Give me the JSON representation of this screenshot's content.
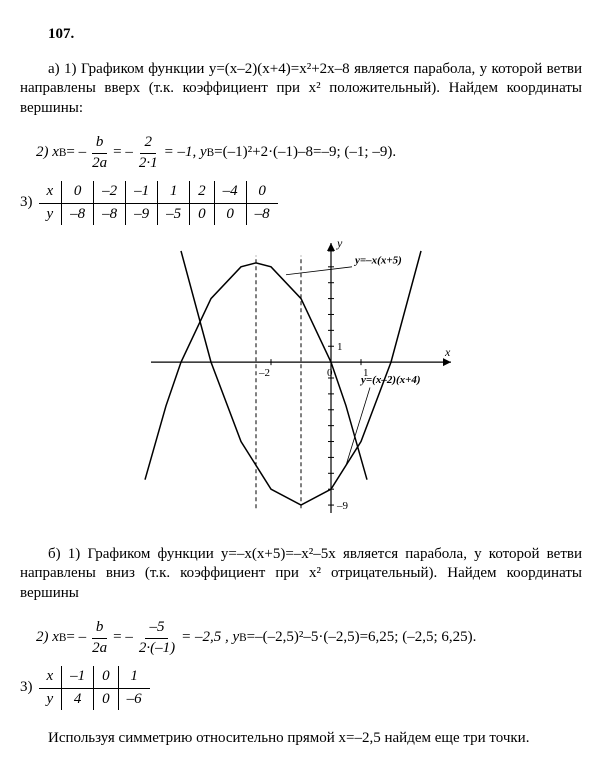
{
  "problem_number": "107.",
  "partA": {
    "item1": "а) 1) Графиком функции y=(x–2)(x+4)=x²+2x–8 является парабола, у которой ветви направлены вверх (т.к. коэффициент при x² положительный). Найдем координаты вершины:",
    "item2_lead": "2) x",
    "item2_sub": "В",
    "item2_eq1": "= –",
    "frac1_num": "b",
    "frac1_den": "2a",
    "item2_eq2": " = –",
    "frac2_num": "2",
    "frac2_den": "2·1",
    "item2_tail": " = –1, y",
    "item2_sub2": "В",
    "item2_tail2": "=(–1)²+2·(–1)–8=–9; (–1; –9).",
    "item3_label": "3)",
    "table": {
      "head": [
        "x",
        "0",
        "–2",
        "–1",
        "1",
        "2",
        "–4",
        "0"
      ],
      "row": [
        "y",
        "–8",
        "–8",
        "–9",
        "–5",
        "0",
        "0",
        "–8"
      ]
    }
  },
  "chart": {
    "type": "line",
    "background_color": "#ffffff",
    "axis_color": "#000000",
    "tick_fontsize": 11,
    "label_fontsize": 12,
    "xlim": [
      -6,
      4
    ],
    "ylim": [
      -9.5,
      7.5
    ],
    "x_ticks": [
      -2,
      0,
      1
    ],
    "x_labels": [
      "–2",
      "0",
      "1"
    ],
    "y_ticks": [
      1,
      -9
    ],
    "y_labels": [
      "1",
      "–9"
    ],
    "axis_labels": {
      "x": "x",
      "y": "y"
    },
    "curve_labels": {
      "down": "y=–x(x+5)",
      "up": "y=(x–2)(x+4)"
    },
    "series": {
      "parabola_up": {
        "stroke": "#000000",
        "stroke_width": 1.5,
        "points": [
          [
            -5,
            7
          ],
          [
            -4,
            0
          ],
          [
            -3,
            -5
          ],
          [
            -2,
            -8
          ],
          [
            -1,
            -9
          ],
          [
            0,
            -8
          ],
          [
            1,
            -5
          ],
          [
            2,
            0
          ],
          [
            3,
            7
          ]
        ]
      },
      "parabola_down": {
        "stroke": "#000000",
        "stroke_width": 1.5,
        "points": [
          [
            -6.2,
            -7.4
          ],
          [
            -5.5,
            -2.75
          ],
          [
            -5,
            0
          ],
          [
            -4,
            4
          ],
          [
            -3,
            6
          ],
          [
            -2.5,
            6.25
          ],
          [
            -2,
            6
          ],
          [
            -1,
            4
          ],
          [
            0,
            0
          ],
          [
            0.5,
            -2.75
          ],
          [
            1.2,
            -7.4
          ]
        ]
      }
    },
    "vlines": [
      {
        "x": -2.5,
        "dash": "4 3",
        "stroke": "#000000"
      },
      {
        "x": -1,
        "dash": "4 3",
        "stroke": "#000000"
      }
    ]
  },
  "partB": {
    "item1": "б) 1) Графиком функции y=–x(x+5)=–x²–5x является парабола, у которой ветви направлены вниз (т.к. коэффициент при x² отрицательный). Найдем координаты вершины",
    "item2_lead": "2) x",
    "item2_sub": "В",
    "item2_eq1": "= –",
    "frac1_num": "b",
    "frac1_den": "2a",
    "item2_eq2": " = –",
    "frac2_num": "–5",
    "frac2_den": "2·(–1)",
    "item2_tail": " = –2,5 , y",
    "item2_sub2": "В",
    "item2_tail2": "=–(–2,5)²–5·(–2,5)=6,25; (–2,5; 6,25).",
    "item3_label": "3)",
    "table": {
      "head": [
        "x",
        "–1",
        "0",
        "1"
      ],
      "row": [
        "y",
        "4",
        "0",
        "–6"
      ]
    },
    "footer": "Используя симметрию относительно прямой x=–2,5 найдем еще три точки."
  }
}
